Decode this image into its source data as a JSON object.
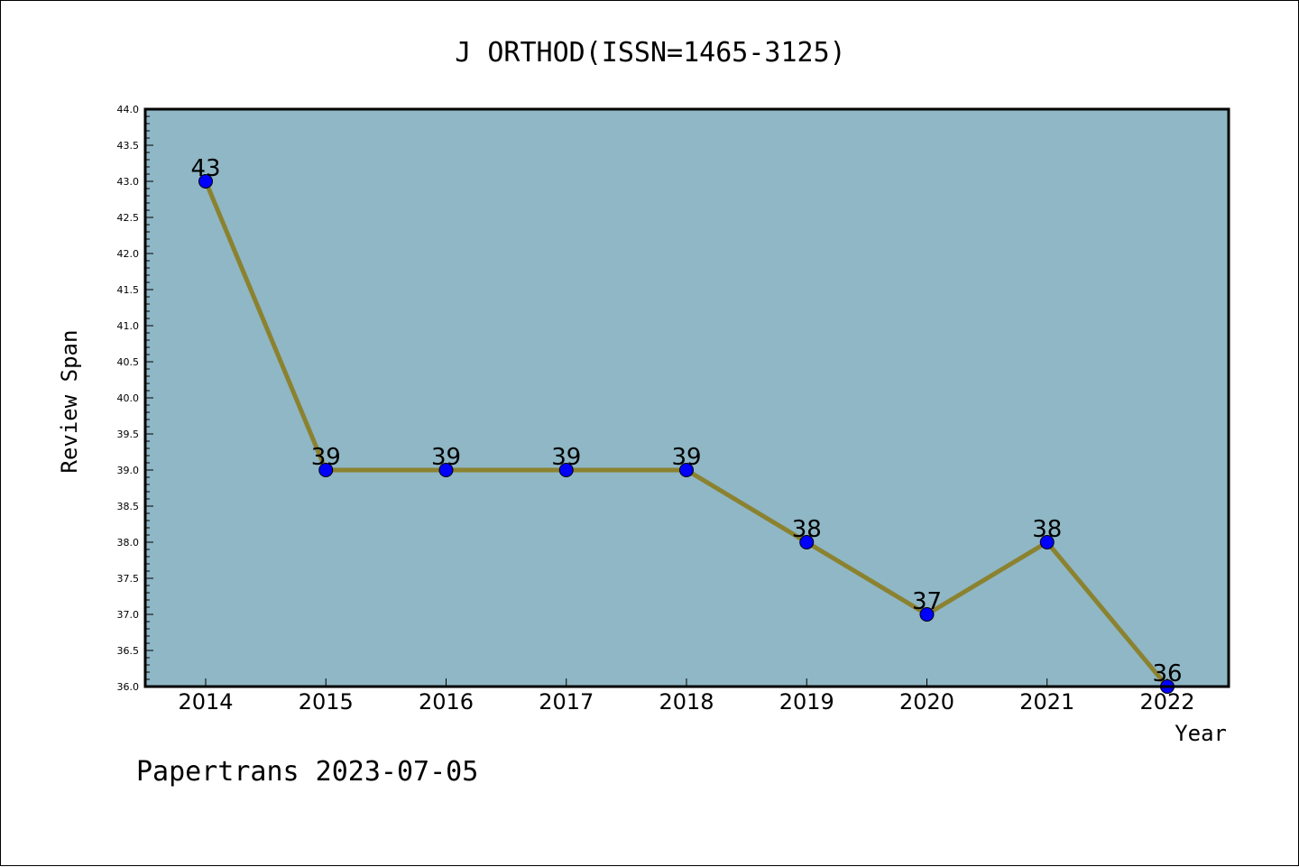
{
  "chart_data": {
    "type": "line",
    "title": "J ORTHOD(ISSN=1465-3125)",
    "xlabel": "Year",
    "ylabel": "Review Span",
    "categories": [
      "2014",
      "2015",
      "2016",
      "2017",
      "2018",
      "2019",
      "2020",
      "2021",
      "2022"
    ],
    "series": [
      {
        "values": [
          43,
          39,
          39,
          39,
          39,
          38,
          37,
          38,
          36
        ]
      }
    ],
    "ylim": [
      36.0,
      44.0
    ],
    "yticks": [
      "36.0",
      "36.5",
      "37.0",
      "37.5",
      "38.0",
      "38.5",
      "39.0",
      "39.5",
      "40.0",
      "40.5",
      "41.0",
      "41.5",
      "42.0",
      "42.5",
      "43.0",
      "43.5",
      "44.0"
    ],
    "grid": false,
    "legend": "none",
    "colors": {
      "plot_background": "#8fb7c5",
      "line": "#8b8230",
      "marker": "#0000ff"
    }
  },
  "footer": "Papertrans 2023-07-05"
}
